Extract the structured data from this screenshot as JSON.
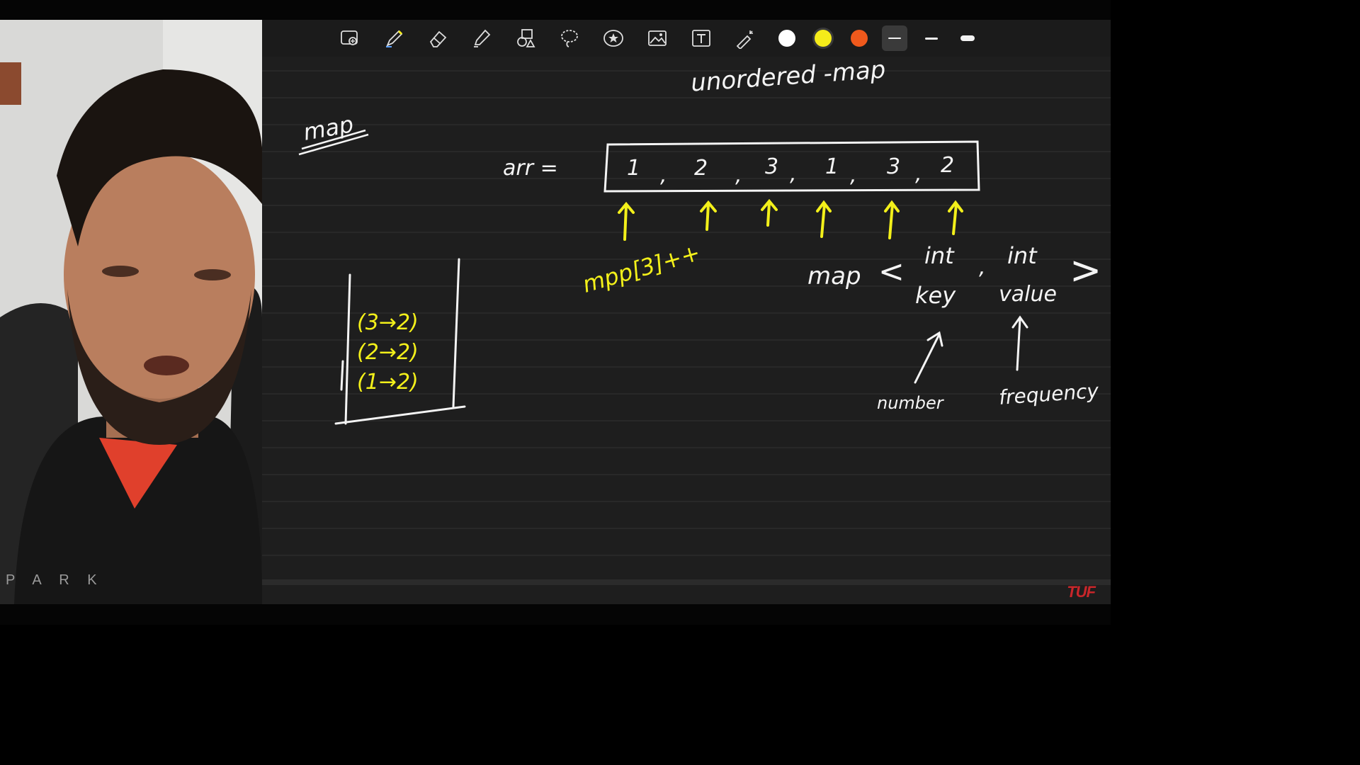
{
  "toolbar": {
    "tools": [
      {
        "name": "zoom-tool-icon"
      },
      {
        "name": "pen-tool-icon"
      },
      {
        "name": "eraser-tool-icon"
      },
      {
        "name": "highlighter-tool-icon"
      },
      {
        "name": "shapes-tool-icon"
      },
      {
        "name": "lasso-tool-icon"
      },
      {
        "name": "sticker-tool-icon"
      },
      {
        "name": "image-tool-icon"
      },
      {
        "name": "text-tool-icon"
      },
      {
        "name": "laser-pointer-tool-icon"
      }
    ],
    "colors": [
      "#ffffff",
      "#f5ec1a",
      "#f0591c"
    ],
    "selected_color": "#f5ec1a",
    "stroke_widths": [
      "thin",
      "medium",
      "thick"
    ],
    "selected_stroke": "thin"
  },
  "board": {
    "heading": "unordered -map",
    "left_title": "map",
    "arr_label": "arr =",
    "array_values": [
      "1",
      "2",
      "3",
      "1",
      "3",
      "2"
    ],
    "array_separator": ",",
    "code_note": "mpp[3]++",
    "map_keyword": "map",
    "angle_open": "<",
    "angle_close": ">",
    "type_key": "int",
    "type_comma": ",",
    "type_value": "int",
    "key_label": "key",
    "value_label": "value",
    "key_caption": "number",
    "value_caption": "frequency",
    "map_entries": [
      {
        "key": "3",
        "value": "2"
      },
      {
        "key": "2",
        "value": "2"
      },
      {
        "key": "1",
        "value": "2"
      }
    ],
    "colors": {
      "ink_white": "#f4f4f4",
      "ink_yellow": "#f3f01a",
      "paper": "#1e1e1e",
      "rule_line": "#333333"
    }
  },
  "watermark": {
    "logo_text": "TUF",
    "logo_color": "#c8262a"
  },
  "webcam": {
    "background_text": "P A R K"
  }
}
